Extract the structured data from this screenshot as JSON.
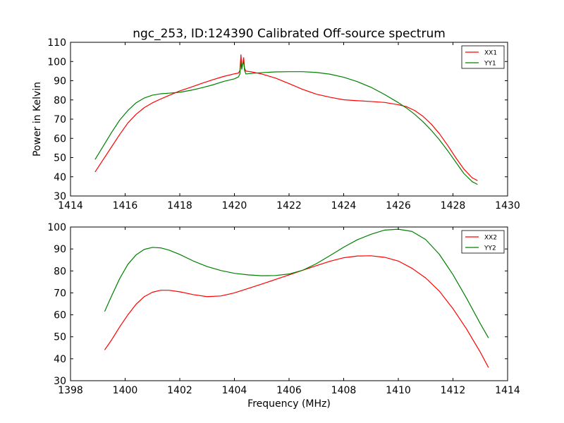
{
  "figure": {
    "title": "ngc_253, ID:124390 Calibrated Off-source spectrum",
    "ylabel": "Power in Kelvin",
    "xlabel": "Frequency (MHz)"
  },
  "chart_data": [
    {
      "type": "line",
      "xlim": [
        1414,
        1430
      ],
      "ylim": [
        30,
        110
      ],
      "xticks": [
        1414,
        1416,
        1418,
        1420,
        1422,
        1424,
        1426,
        1428,
        1430
      ],
      "yticks": [
        30,
        40,
        50,
        60,
        70,
        80,
        90,
        100,
        110
      ],
      "grid": false,
      "legend": "top-right",
      "series": [
        {
          "name": "XX1",
          "color": "#ff0000",
          "x": [
            1414.9,
            1415.2,
            1415.5,
            1415.8,
            1416.1,
            1416.4,
            1416.7,
            1417.0,
            1417.3,
            1417.6,
            1418.0,
            1418.4,
            1418.8,
            1419.2,
            1419.6,
            1420.0,
            1420.15,
            1420.2,
            1420.24,
            1420.27,
            1420.3,
            1420.34,
            1420.37,
            1420.42,
            1420.6,
            1421.0,
            1421.5,
            1422.0,
            1422.5,
            1423.0,
            1423.5,
            1424.0,
            1424.5,
            1425.0,
            1425.5,
            1426.0,
            1426.3,
            1426.6,
            1426.9,
            1427.2,
            1427.5,
            1427.8,
            1428.1,
            1428.4,
            1428.7,
            1428.9
          ],
          "values": [
            42.5,
            49.0,
            55.5,
            62.0,
            68.0,
            72.5,
            76.0,
            78.5,
            80.5,
            82.3,
            84.7,
            86.6,
            88.6,
            90.5,
            92.2,
            93.6,
            94.0,
            95.2,
            103.5,
            97.0,
            98.5,
            102.0,
            96.5,
            95.0,
            94.7,
            93.5,
            91.4,
            88.5,
            85.5,
            83.0,
            81.4,
            80.1,
            79.6,
            79.2,
            78.7,
            77.5,
            76.5,
            74.5,
            71.5,
            67.5,
            62.5,
            56.5,
            50.0,
            44.0,
            39.5,
            38.0
          ]
        },
        {
          "name": "YY1",
          "color": "#008000",
          "x": [
            1414.9,
            1415.2,
            1415.5,
            1415.8,
            1416.1,
            1416.4,
            1416.7,
            1417.0,
            1417.3,
            1417.6,
            1418.0,
            1418.4,
            1418.8,
            1419.2,
            1419.6,
            1420.0,
            1420.15,
            1420.2,
            1420.24,
            1420.27,
            1420.3,
            1420.34,
            1420.37,
            1420.42,
            1420.6,
            1421.0,
            1421.5,
            1422.0,
            1422.5,
            1423.0,
            1423.5,
            1424.0,
            1424.5,
            1425.0,
            1425.5,
            1426.0,
            1426.3,
            1426.6,
            1426.9,
            1427.2,
            1427.5,
            1427.8,
            1428.1,
            1428.4,
            1428.7,
            1428.9
          ],
          "values": [
            49.0,
            56.0,
            63.0,
            69.5,
            74.5,
            78.5,
            81.0,
            82.5,
            83.2,
            83.5,
            84.0,
            85.0,
            86.3,
            87.8,
            89.6,
            91.0,
            92.0,
            93.5,
            100.0,
            96.0,
            98.5,
            99.8,
            95.5,
            93.5,
            93.8,
            94.2,
            94.6,
            94.7,
            94.7,
            94.3,
            93.4,
            91.8,
            89.5,
            86.6,
            82.8,
            78.6,
            75.8,
            72.5,
            68.7,
            64.3,
            59.3,
            53.7,
            47.7,
            41.7,
            37.5,
            36.0
          ]
        }
      ]
    },
    {
      "type": "line",
      "xlim": [
        1398,
        1414
      ],
      "ylim": [
        30,
        100
      ],
      "xticks": [
        1398,
        1400,
        1402,
        1404,
        1406,
        1408,
        1410,
        1412,
        1414
      ],
      "yticks": [
        30,
        40,
        50,
        60,
        70,
        80,
        90,
        100
      ],
      "grid": false,
      "legend": "top-right",
      "series": [
        {
          "name": "XX2",
          "color": "#ff0000",
          "x": [
            1399.25,
            1399.5,
            1399.8,
            1400.1,
            1400.4,
            1400.7,
            1401.0,
            1401.3,
            1401.6,
            1402.0,
            1402.5,
            1403.0,
            1403.5,
            1404.0,
            1404.5,
            1405.0,
            1405.5,
            1406.0,
            1406.5,
            1407.0,
            1407.5,
            1408.0,
            1408.5,
            1409.0,
            1409.5,
            1410.0,
            1410.5,
            1411.0,
            1411.5,
            1412.0,
            1412.5,
            1413.0,
            1413.3
          ],
          "values": [
            44.0,
            48.5,
            54.5,
            60.0,
            64.8,
            68.3,
            70.3,
            71.2,
            71.2,
            70.5,
            69.2,
            68.3,
            68.6,
            70.0,
            72.0,
            74.0,
            76.1,
            78.2,
            80.3,
            82.4,
            84.4,
            86.0,
            86.8,
            86.9,
            86.2,
            84.5,
            81.2,
            76.8,
            70.8,
            62.8,
            53.5,
            43.0,
            36.0
          ]
        },
        {
          "name": "YY2",
          "color": "#008000",
          "x": [
            1399.25,
            1399.5,
            1399.8,
            1400.1,
            1400.4,
            1400.7,
            1401.0,
            1401.3,
            1401.6,
            1402.0,
            1402.5,
            1403.0,
            1403.5,
            1404.0,
            1404.5,
            1405.0,
            1405.5,
            1406.0,
            1406.5,
            1407.0,
            1407.5,
            1408.0,
            1408.5,
            1409.0,
            1409.5,
            1410.0,
            1410.5,
            1411.0,
            1411.5,
            1412.0,
            1412.5,
            1413.0,
            1413.3
          ],
          "values": [
            61.5,
            68.5,
            76.5,
            83.0,
            87.3,
            89.8,
            90.7,
            90.5,
            89.5,
            87.5,
            84.5,
            82.0,
            80.2,
            78.9,
            78.2,
            77.8,
            77.9,
            78.6,
            80.3,
            83.3,
            87.0,
            90.8,
            94.2,
            96.7,
            98.6,
            99.0,
            98.0,
            94.3,
            87.6,
            78.3,
            67.5,
            56.0,
            49.5
          ]
        }
      ]
    }
  ]
}
